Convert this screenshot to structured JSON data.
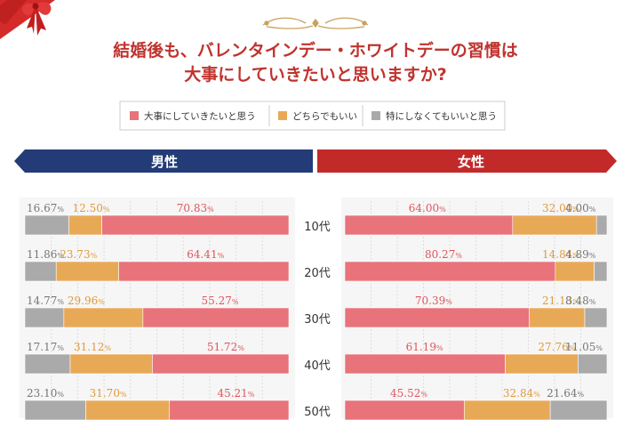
{
  "title": {
    "line1": "結婚後も、バレンタインデー・ホワイトデーの習慣は",
    "line2": "大事にしていきたいと思いますか?"
  },
  "legend": [
    {
      "label": "大事にしていきたいと思う",
      "color": "#e8737a"
    },
    {
      "label": "どちらでもいい",
      "color": "#e8a957"
    },
    {
      "label": "特にしなくてもいいと思う",
      "color": "#aaaaaa"
    }
  ],
  "banners": {
    "male": "男性",
    "female": "女性"
  },
  "colors": {
    "banner_male": "#233c78",
    "banner_female": "#c22a2a",
    "label_red": "#e0555c",
    "label_orange": "#e09a3c",
    "label_gray": "#777777",
    "title": "#c0332e"
  },
  "chart_data": [
    {
      "type": "bar",
      "orientation": "horizontal-stacked-100",
      "panel": "男性",
      "categories": [
        "10代",
        "20代",
        "30代",
        "40代",
        "50代"
      ],
      "series": [
        {
          "name": "大事にしていきたいと思う",
          "values": [
            70.83,
            64.41,
            55.27,
            51.72,
            45.21
          ]
        },
        {
          "name": "どちらでもいい",
          "values": [
            12.5,
            23.73,
            29.96,
            31.12,
            31.7
          ]
        },
        {
          "name": "特にしなくてもいいと思う",
          "values": [
            16.67,
            11.86,
            14.77,
            17.17,
            23.1
          ]
        }
      ],
      "unit": "%"
    },
    {
      "type": "bar",
      "orientation": "horizontal-stacked-100",
      "panel": "女性",
      "categories": [
        "10代",
        "20代",
        "30代",
        "40代",
        "50代"
      ],
      "series": [
        {
          "name": "大事にしていきたいと思う",
          "values": [
            64.0,
            80.27,
            70.39,
            61.19,
            45.52
          ]
        },
        {
          "name": "どちらでもいい",
          "values": [
            32.0,
            14.84,
            21.13,
            27.76,
            32.84
          ]
        },
        {
          "name": "特にしなくてもいいと思う",
          "values": [
            4.0,
            4.89,
            8.48,
            11.05,
            21.64
          ]
        }
      ],
      "unit": "%"
    }
  ]
}
